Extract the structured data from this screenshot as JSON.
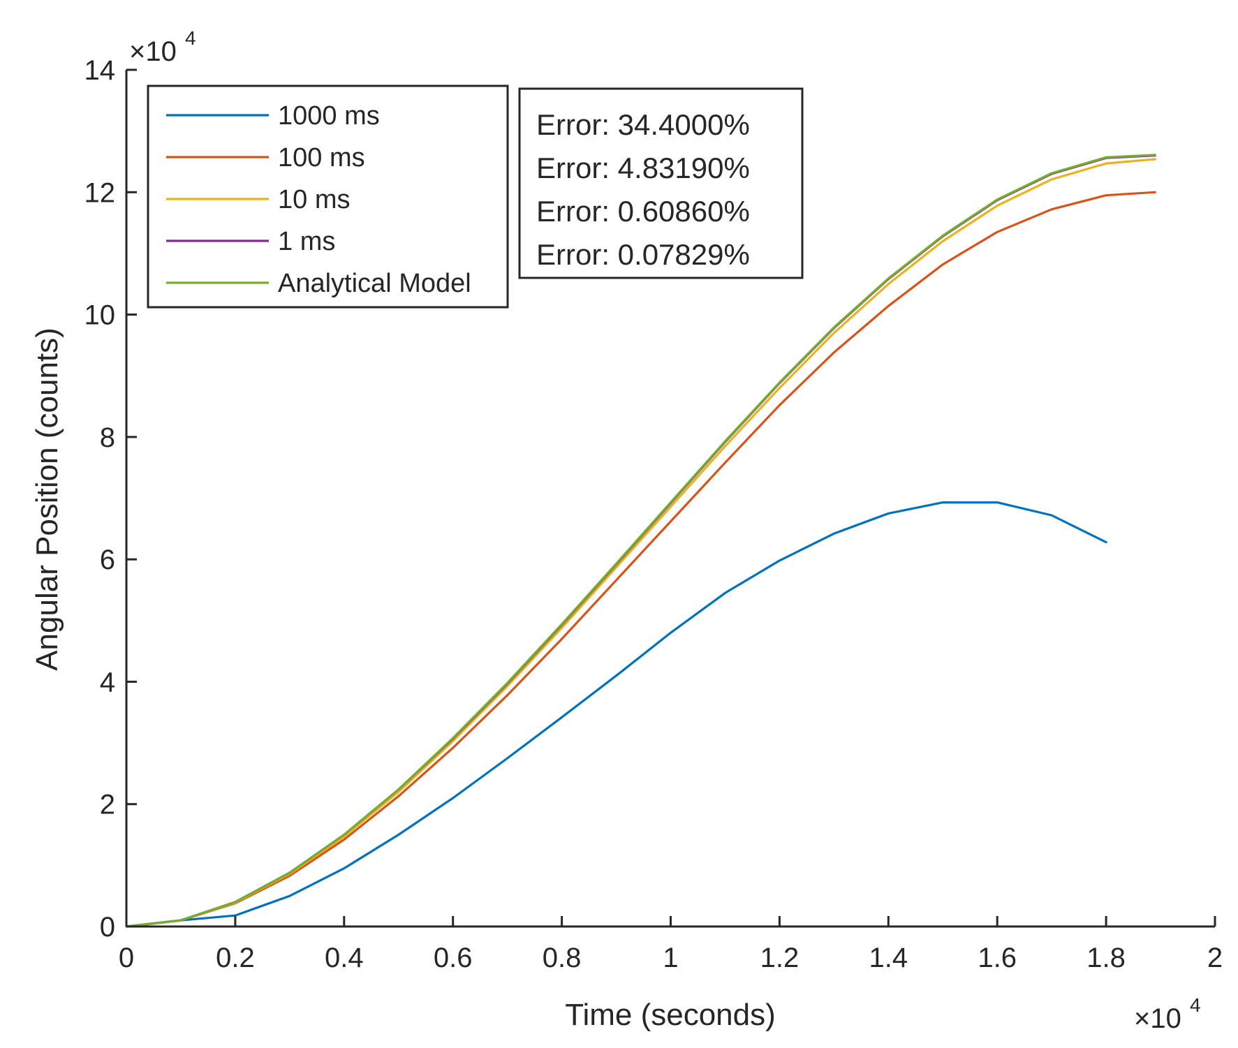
{
  "chart_data": {
    "type": "line",
    "title": "",
    "xlabel": "Time (seconds)",
    "ylabel": "Angular Position (counts)",
    "x_multiplier": {
      "base": "×10",
      "exponent": "4"
    },
    "y_multiplier": {
      "base": "×10",
      "exponent": "4"
    },
    "xlim": [
      0,
      2
    ],
    "ylim": [
      0,
      14
    ],
    "xticks": [
      0,
      0.2,
      0.4,
      0.6,
      0.8,
      1,
      1.2,
      1.4,
      1.6,
      1.8,
      2
    ],
    "xtick_labels": [
      "0",
      "0.2",
      "0.4",
      "0.6",
      "0.8",
      "1",
      "1.2",
      "1.4",
      "1.6",
      "1.8",
      "2"
    ],
    "yticks": [
      0,
      2,
      4,
      6,
      8,
      10,
      12,
      14
    ],
    "ytick_labels": [
      "0",
      "2",
      "4",
      "6",
      "8",
      "10",
      "12",
      "14"
    ],
    "grid": false,
    "legend_position": "top-left",
    "series": [
      {
        "name": "1000 ms",
        "color": "#0072BD",
        "x": [
          0,
          0.1,
          0.2,
          0.3,
          0.4,
          0.5,
          0.6,
          0.7,
          0.8,
          0.9,
          1.0,
          1.1,
          1.2,
          1.3,
          1.4,
          1.5,
          1.6,
          1.7,
          1.8
        ],
        "y": [
          0,
          0.1,
          0.18,
          0.5,
          0.95,
          1.5,
          2.1,
          2.75,
          3.42,
          4.1,
          4.8,
          5.45,
          5.98,
          6.42,
          6.75,
          6.93,
          6.93,
          6.72,
          6.28
        ]
      },
      {
        "name": "100 ms",
        "color": "#D95319",
        "x": [
          0,
          0.1,
          0.2,
          0.3,
          0.4,
          0.5,
          0.6,
          0.7,
          0.8,
          0.9,
          1.0,
          1.1,
          1.2,
          1.3,
          1.4,
          1.5,
          1.6,
          1.7,
          1.8,
          1.89
        ],
        "y": [
          0,
          0.1,
          0.38,
          0.83,
          1.42,
          2.13,
          2.92,
          3.78,
          4.7,
          5.66,
          6.62,
          7.58,
          8.52,
          9.38,
          10.14,
          10.82,
          11.35,
          11.72,
          11.95,
          12.0
        ]
      },
      {
        "name": "10 ms",
        "color": "#EDB120",
        "x": [
          0,
          0.1,
          0.2,
          0.3,
          0.4,
          0.5,
          0.6,
          0.7,
          0.8,
          0.9,
          1.0,
          1.1,
          1.2,
          1.3,
          1.4,
          1.5,
          1.6,
          1.7,
          1.8,
          1.89
        ],
        "y": [
          0,
          0.1,
          0.39,
          0.86,
          1.47,
          2.2,
          3.03,
          3.93,
          4.88,
          5.87,
          6.86,
          7.85,
          8.8,
          9.7,
          10.5,
          11.2,
          11.78,
          12.21,
          12.47,
          12.54
        ]
      },
      {
        "name": "1 ms",
        "color": "#7E2F8E",
        "x": [
          0,
          0.1,
          0.2,
          0.3,
          0.4,
          0.5,
          0.6,
          0.7,
          0.8,
          0.9,
          1.0,
          1.1,
          1.2,
          1.3,
          1.4,
          1.5,
          1.6,
          1.7,
          1.8,
          1.89
        ],
        "y": [
          0,
          0.1,
          0.4,
          0.88,
          1.5,
          2.24,
          3.07,
          3.97,
          4.93,
          5.92,
          6.92,
          7.92,
          8.88,
          9.78,
          10.58,
          11.28,
          11.87,
          12.3,
          12.56,
          12.6
        ]
      },
      {
        "name": "Analytical Model",
        "color": "#77AC30",
        "x": [
          0,
          0.1,
          0.2,
          0.3,
          0.4,
          0.5,
          0.6,
          0.7,
          0.8,
          0.9,
          1.0,
          1.1,
          1.2,
          1.3,
          1.4,
          1.5,
          1.6,
          1.7,
          1.8,
          1.89
        ],
        "y": [
          0,
          0.1,
          0.4,
          0.88,
          1.5,
          2.24,
          3.08,
          3.98,
          4.94,
          5.93,
          6.93,
          7.93,
          8.89,
          9.79,
          10.59,
          11.29,
          11.88,
          12.31,
          12.57,
          12.61
        ]
      }
    ],
    "annotations": [
      "Error: 34.4000%",
      "Error: 4.83190%",
      "Error: 0.60860%",
      "Error: 0.07829%"
    ]
  }
}
